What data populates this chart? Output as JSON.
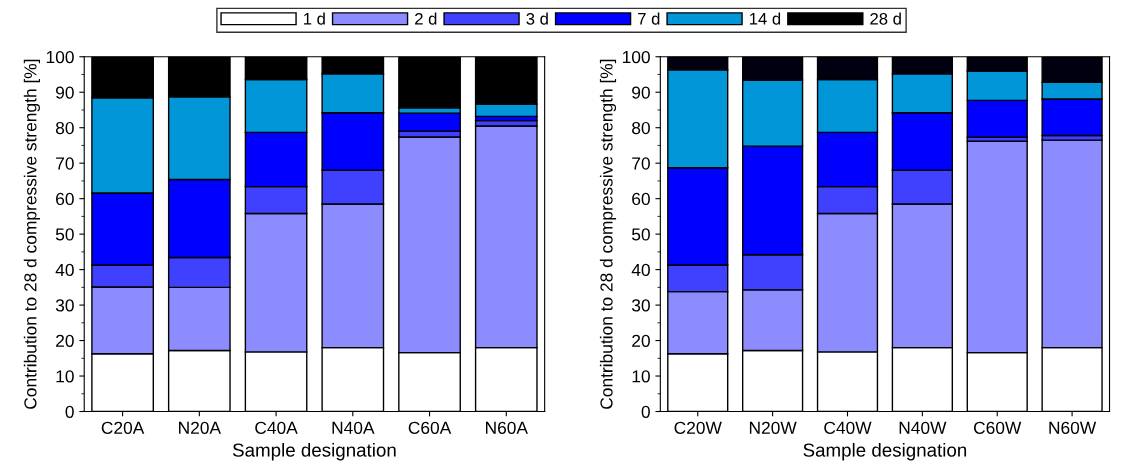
{
  "chart_data": [
    {
      "type": "bar",
      "stacked": true,
      "xlabel": "Sample designation",
      "ylabel": "Contribution to 28 d compressive strength [%]",
      "categories": [
        "C20A",
        "N20A",
        "C40A",
        "N40A",
        "C60A",
        "N60A"
      ],
      "ylim": [
        0,
        100
      ],
      "yticks": [
        0,
        10,
        20,
        30,
        40,
        50,
        60,
        70,
        80,
        90,
        100
      ],
      "legend": "top",
      "grid": false,
      "series": [
        {
          "name": "1 d",
          "color": "#ffffff",
          "values": [
            16.3,
            17.2,
            16.8,
            18.0,
            16.6,
            18.0
          ]
        },
        {
          "name": "2 d",
          "color": "#8c8cff",
          "values": [
            18.8,
            17.8,
            39.0,
            40.5,
            60.8,
            62.5
          ]
        },
        {
          "name": "3 d",
          "color": "#4040ff",
          "values": [
            6.2,
            8.4,
            7.6,
            9.5,
            1.6,
            1.5
          ]
        },
        {
          "name": "7 d",
          "color": "#0000ff",
          "values": [
            20.3,
            22.0,
            15.3,
            16.2,
            5.1,
            1.2
          ]
        },
        {
          "name": "14 d",
          "color": "#0096d8",
          "values": [
            26.8,
            23.3,
            14.9,
            11.0,
            1.5,
            3.5
          ]
        },
        {
          "name": "28 d",
          "color": "#000000",
          "values": [
            11.6,
            11.3,
            6.4,
            4.8,
            14.4,
            13.3
          ]
        }
      ]
    },
    {
      "type": "bar",
      "stacked": true,
      "xlabel": "Sample designation",
      "ylabel": "Contribution to 28 d compressive strength [%]",
      "categories": [
        "C20W",
        "N20W",
        "C40W",
        "N40W",
        "C60W",
        "N60W"
      ],
      "ylim": [
        0,
        100
      ],
      "yticks": [
        0,
        10,
        20,
        30,
        40,
        50,
        60,
        70,
        80,
        90,
        100
      ],
      "grid": false,
      "series": [
        {
          "color": "#ffffff",
          "values": [
            16.3,
            17.2,
            16.8,
            18.0,
            16.6,
            18.0
          ]
        },
        {
          "color": "#8c8cff",
          "values": [
            17.5,
            17.1,
            39.0,
            40.5,
            59.6,
            58.5
          ]
        },
        {
          "color": "#4040ff",
          "values": [
            7.5,
            9.9,
            7.6,
            9.5,
            1.1,
            1.3
          ]
        },
        {
          "color": "#0000ff",
          "values": [
            27.4,
            30.6,
            15.3,
            16.2,
            10.4,
            10.3
          ]
        },
        {
          "color": "#0096d8",
          "values": [
            27.6,
            18.6,
            14.9,
            11.0,
            8.3,
            4.7
          ]
        },
        {
          "color": "#000010",
          "values": [
            3.7,
            6.6,
            6.4,
            4.8,
            4.0,
            7.2
          ]
        }
      ]
    }
  ]
}
